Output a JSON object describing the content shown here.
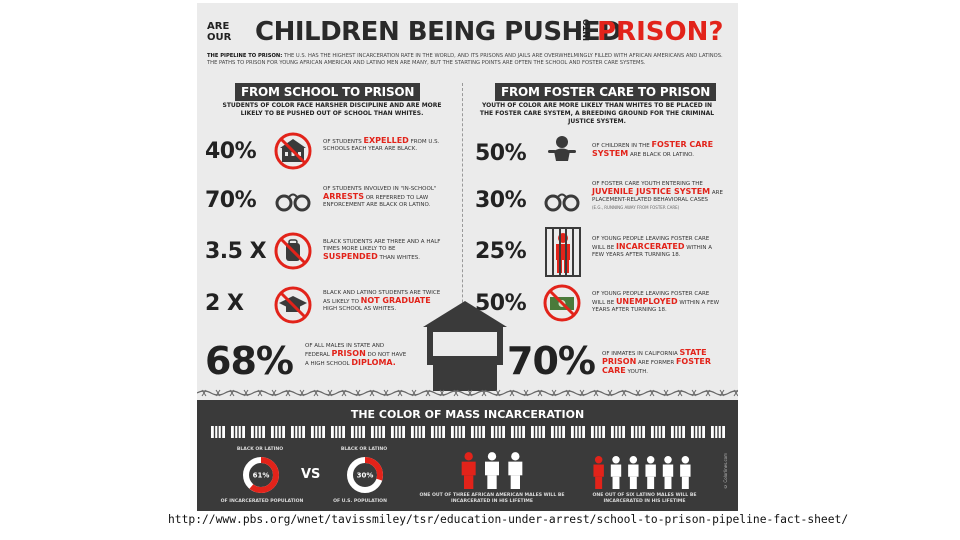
{
  "header": {
    "are_our": "ARE OUR",
    "title_main": "CHILDREN BEING PUSHED",
    "into": "INTO",
    "title_prison": "PRISON?",
    "intro_lead": "THE PIPELINE TO PRISON:",
    "intro_text": "THE U.S. HAS THE HIGHEST INCARCERATION RATE IN THE WORLD, AND ITS PRISONS AND JAILS ARE OVERWHELMINGLY FILLED WITH AFRICAN AMERICANS AND LATINOS. THE PATHS TO PRISON FOR YOUNG AFRICAN AMERICAN AND LATINO MEN ARE MANY, BUT THE STARTING POINTS ARE OFTEN THE SCHOOL AND FOSTER CARE SYSTEMS."
  },
  "left": {
    "heading": "FROM SCHOOL TO PRISON",
    "subheading": "STUDENTS OF COLOR FACE HARSHER DISCIPLINE AND ARE MORE LIKELY TO BE PUSHED OUT OF SCHOOL THAN WHITES.",
    "stats": [
      {
        "value": "40%",
        "icon": "school-no-icon",
        "pre": "OF STUDENTS",
        "highlight": "EXPELLED",
        "post": "FROM U.S. SCHOOLS EACH YEAR ARE BLACK."
      },
      {
        "value": "70%",
        "icon": "handcuffs-icon",
        "pre": "OF STUDENTS INVOLVED IN \"IN-SCHOOL\"",
        "highlight": "ARRESTS",
        "post": "OR REFERRED TO LAW ENFORCEMENT ARE BLACK OR LATINO."
      },
      {
        "value": "3.5 X",
        "icon": "backpack-no-icon",
        "pre": "BLACK STUDENTS ARE THREE AND A HALF TIMES MORE LIKELY TO BE",
        "highlight": "SUSPENDED",
        "post": "THAN WHITES."
      },
      {
        "value": "2 X",
        "icon": "graduation-cap-no-icon",
        "pre": "BLACK AND LATINO STUDENTS ARE TWICE AS LIKELY TO",
        "highlight": "NOT GRADUATE",
        "post": "HIGH SCHOOL AS WHITES."
      }
    ],
    "big_value": "68%",
    "big_pre": "OF ALL MALES IN STATE AND FEDERAL",
    "big_highlight1": "PRISON",
    "big_mid": "DO NOT HAVE A HIGH SCHOOL",
    "big_highlight2": "DIPLOMA."
  },
  "right": {
    "heading": "FROM FOSTER CARE TO PRISON",
    "subheading": "YOUTH OF COLOR ARE MORE LIKELY THAN WHITES TO BE PLACED IN THE FOSTER CARE SYSTEM, A BREEDING GROUND FOR THE CRIMINAL JUSTICE SYSTEM.",
    "stats": [
      {
        "value": "50%",
        "icon": "baby-icon",
        "pre": "OF CHILDREN IN THE",
        "highlight": "FOSTER CARE SYSTEM",
        "post": "ARE BLACK OR LATINO."
      },
      {
        "value": "30%",
        "icon": "handcuffs-icon",
        "pre": "OF FOSTER CARE YOUTH ENTERING THE",
        "highlight": "JUVENILE JUSTICE SYSTEM",
        "post": "ARE PLACEMENT-RELATED BEHAVIORAL CASES",
        "note": "(E.G., RUNNING AWAY FROM FOSTER CARE)"
      },
      {
        "value": "25%",
        "icon": "prisoner-bars-icon",
        "pre": "OF YOUNG PEOPLE LEAVING FOSTER CARE WILL BE",
        "highlight": "INCARCERATED",
        "post": "WITHIN A FEW YEARS AFTER TURNING 18."
      },
      {
        "value": "50%",
        "icon": "money-no-icon",
        "pre": "OF YOUNG PEOPLE LEAVING FOSTER CARE WILL BE",
        "highlight": "UNEMPLOYED",
        "post": "WITHIN A FEW YEARS AFTER TURNING 18."
      }
    ],
    "big_value": "70%",
    "big_pre": "OF INMATES IN CALIFORNIA",
    "big_highlight1": "STATE PRISON",
    "big_mid": "ARE FORMER",
    "big_highlight2": "FOSTER CARE",
    "big_post": "YOUTH."
  },
  "bottom": {
    "title": "THE COLOR OF MASS INCARCERATION",
    "donut1": {
      "label": "BLACK OR LATINO",
      "value": "61%",
      "fraction": 0.61,
      "caption": "OF INCARCERATED POPULATION"
    },
    "vs": "VS",
    "donut2": {
      "label": "BLACK OR LATINO",
      "value": "30%",
      "fraction": 0.3,
      "caption": "OF U.S. POPULATION"
    },
    "people1_caption": "ONE OUT OF THREE AFRICAN AMERICAN MALES WILL BE INCARCERATED IN HIS LIFETIME",
    "people1_highlighted": 1,
    "people1_total": 3,
    "people2_caption": "ONE OUT OF SIX LATINO MALES WILL BE INCARCERATED IN HIS LIFETIME",
    "people2_highlighted": 1,
    "people2_total": 6,
    "copyright": "© Colorlines.com"
  },
  "colors": {
    "accent": "#e2231a",
    "dark": "#3a3a3a",
    "background": "#ebebeb"
  },
  "source_url": "http://www.pbs.org/wnet/tavissmiley/tsr/education-under-arrest/school-to-prison-pipeline-fact-sheet/"
}
